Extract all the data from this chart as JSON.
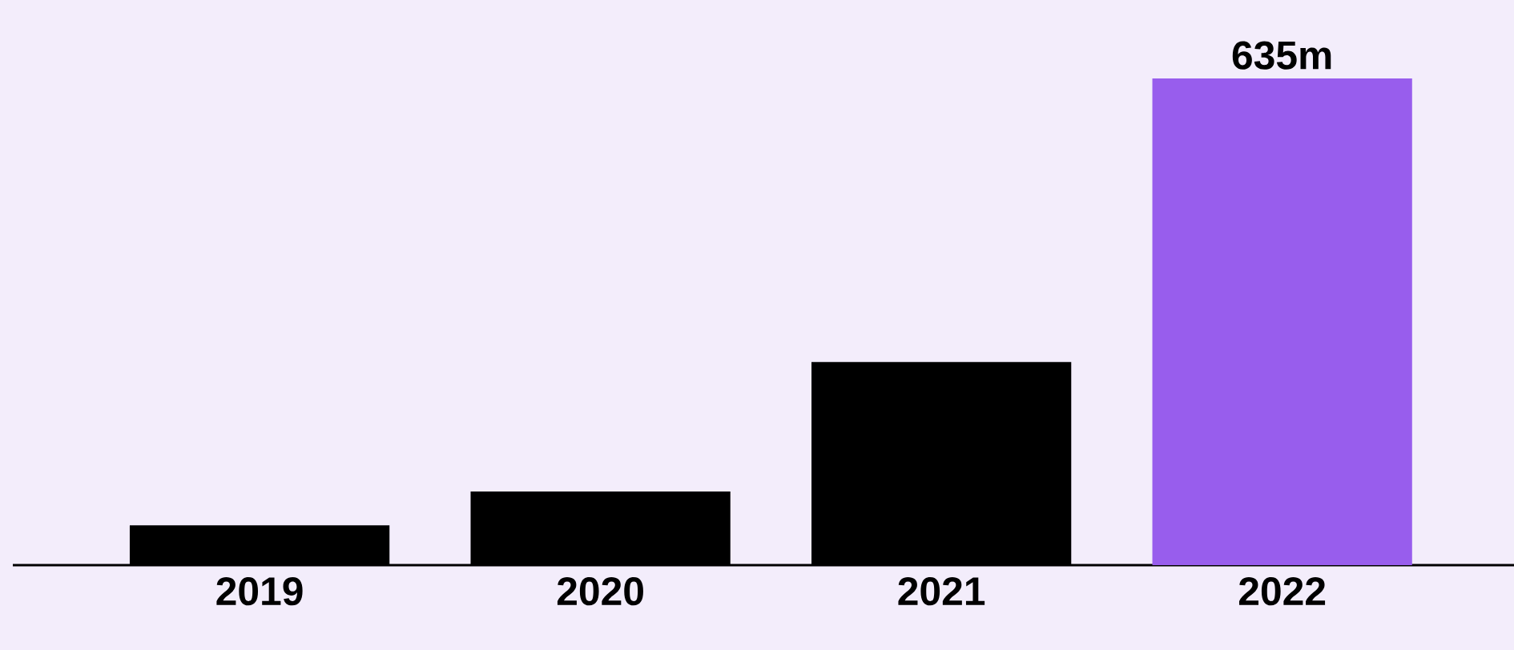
{
  "chart_data": {
    "type": "bar",
    "categories": [
      "2019",
      "2020",
      "2021",
      "2022"
    ],
    "values": [
      52,
      96,
      265,
      635
    ],
    "colors": [
      "#000000",
      "#000000",
      "#000000",
      "#985ded"
    ],
    "value_labels": [
      null,
      null,
      null,
      "635m"
    ]
  }
}
